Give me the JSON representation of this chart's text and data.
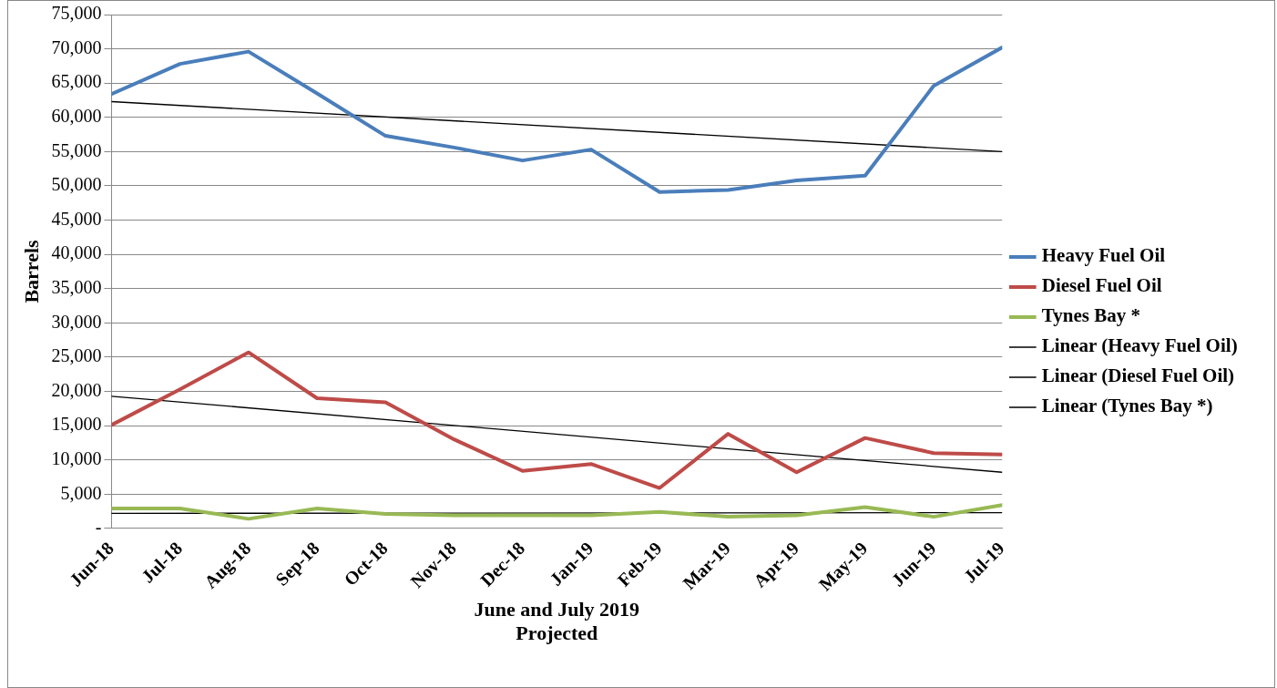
{
  "chart_data": {
    "type": "line",
    "xlabel": "June and July 2019\nProjected",
    "ylabel": "Barrels",
    "categories": [
      "Jun-18",
      "Jul-18",
      "Aug-18",
      "Sep-18",
      "Oct-18",
      "Nov-18",
      "Dec-18",
      "Jan-19",
      "Feb-19",
      "Mar-19",
      "Apr-19",
      "May-19",
      "Jun-19",
      "Jul-19"
    ],
    "series": [
      {
        "name": "Heavy Fuel Oil",
        "color": "#4a7ebb",
        "values": [
          63400,
          67800,
          69600,
          63500,
          57300,
          55600,
          53700,
          55300,
          49100,
          49400,
          50800,
          51500,
          64600,
          70200
        ]
      },
      {
        "name": "Diesel Fuel Oil",
        "color": "#be4b48",
        "values": [
          15100,
          20300,
          25700,
          19000,
          18400,
          13000,
          8400,
          9400,
          5900,
          13800,
          8200,
          13200,
          11000,
          10800
        ]
      },
      {
        "name": "Tynes Bay *",
        "color": "#98b954",
        "values": [
          2900,
          2900,
          1400,
          2900,
          2100,
          1900,
          1900,
          1900,
          2400,
          1700,
          1900,
          3100,
          1700,
          3400
        ]
      },
      {
        "name": "Linear (Heavy Fuel Oil)",
        "color": "#000000",
        "x": [
          "Jun-18",
          "Jul-19"
        ],
        "values": [
          62300,
          55000
        ]
      },
      {
        "name": "Linear (Diesel Fuel Oil)",
        "color": "#000000",
        "x": [
          "Jun-18",
          "Jul-19"
        ],
        "values": [
          19300,
          8200
        ]
      },
      {
        "name": "Linear (Tynes Bay *)",
        "color": "#000000",
        "x": [
          "Jun-18",
          "Jul-19"
        ],
        "values": [
          2200,
          2300
        ]
      }
    ],
    "ylim": [
      0,
      75000
    ],
    "yticks": [
      {
        "value": 0,
        "label": "-"
      },
      {
        "value": 5000,
        "label": "5,000"
      },
      {
        "value": 10000,
        "label": "10,000"
      },
      {
        "value": 15000,
        "label": "15,000"
      },
      {
        "value": 20000,
        "label": "20,000"
      },
      {
        "value": 25000,
        "label": "25,000"
      },
      {
        "value": 30000,
        "label": "30,000"
      },
      {
        "value": 35000,
        "label": "35,000"
      },
      {
        "value": 40000,
        "label": "40,000"
      },
      {
        "value": 45000,
        "label": "45,000"
      },
      {
        "value": 50000,
        "label": "50,000"
      },
      {
        "value": 55000,
        "label": "55,000"
      },
      {
        "value": 60000,
        "label": "60,000"
      },
      {
        "value": 65000,
        "label": "65,000"
      },
      {
        "value": 70000,
        "label": "70,000"
      },
      {
        "value": 75000,
        "label": "75,000"
      }
    ],
    "grid": "y",
    "legend": "right",
    "marker": "none",
    "line_style": "solid"
  }
}
